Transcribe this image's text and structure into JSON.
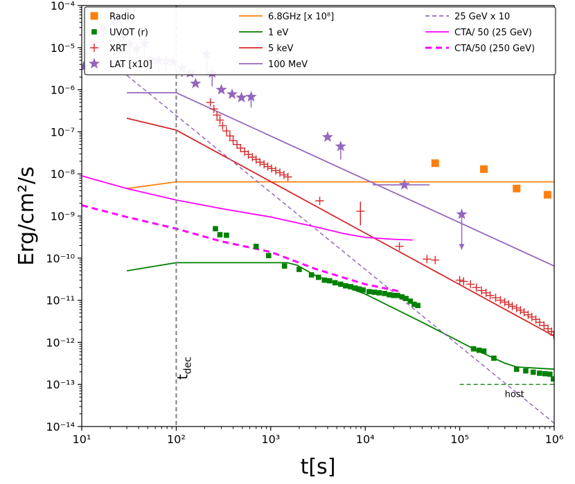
{
  "chart_data": {
    "type": "scatter",
    "xlabel": "t[s]",
    "ylabel": "Erg/cm²/s",
    "xscale": "log",
    "yscale": "log",
    "xlim": [
      10,
      1000000
    ],
    "ylim": [
      1e-14,
      0.0001
    ],
    "x_ticks": [
      {
        "value": 10,
        "label": "10¹"
      },
      {
        "value": 100,
        "label": "10²"
      },
      {
        "value": 1000,
        "label": "10³"
      },
      {
        "value": 10000,
        "label": "10⁴"
      },
      {
        "value": 100000,
        "label": "10⁵"
      },
      {
        "value": 1000000,
        "label": "10⁶"
      }
    ],
    "y_ticks": [
      {
        "value": 1e-14,
        "label": "10⁻¹⁴"
      },
      {
        "value": 1e-13,
        "label": "10⁻¹³"
      },
      {
        "value": 1e-12,
        "label": "10⁻¹²"
      },
      {
        "value": 1e-11,
        "label": "10⁻¹¹"
      },
      {
        "value": 1e-10,
        "label": "10⁻¹⁰"
      },
      {
        "value": 1e-09,
        "label": "10⁻⁹"
      },
      {
        "value": 1e-08,
        "label": "10⁻⁸"
      },
      {
        "value": 1e-07,
        "label": "10⁻⁷"
      },
      {
        "value": 1e-06,
        "label": "10⁻⁶"
      },
      {
        "value": 1e-05,
        "label": "10⁻⁵"
      },
      {
        "value": 0.0001,
        "label": "10⁻⁴"
      }
    ],
    "vline": {
      "x": 100,
      "label": "t",
      "label_sub": "dec",
      "color": "#808080"
    },
    "annotations": [
      {
        "text": "host",
        "x": 380000,
        "y": 5e-14
      }
    ],
    "legend": {
      "placement": "top",
      "columns": [
        [
          {
            "label": "Radio",
            "kind": "square",
            "color": "#ff7f0e"
          },
          {
            "label": "UVOT (r)",
            "kind": "smallsquare",
            "color": "#008000"
          },
          {
            "label": "XRT",
            "kind": "plus",
            "color": "#d62728"
          },
          {
            "label": "LAT [x10]",
            "kind": "star",
            "color": "#9467bd"
          }
        ],
        [
          {
            "label": "6.8GHz [x 10⁸]",
            "kind": "line",
            "color": "#ff7f0e",
            "dash": ""
          },
          {
            "label": "1 eV",
            "kind": "line",
            "color": "#008000",
            "dash": ""
          },
          {
            "label": "5 keV",
            "kind": "line",
            "color": "#d62728",
            "dash": ""
          },
          {
            "label": "100 MeV",
            "kind": "line",
            "color": "#9467bd",
            "dash": ""
          }
        ],
        [
          {
            "label": "25 GeV x 10",
            "kind": "line",
            "color": "#9467bd",
            "dash": "6,4"
          },
          {
            "label": "CTA/ 50 (25 GeV)",
            "kind": "line",
            "color": "#ff00ff",
            "dash": ""
          },
          {
            "label": "CTA/50 (250 GeV)",
            "kind": "line",
            "color": "#ff00ff",
            "dash": "9,6",
            "width": 3
          }
        ]
      ]
    },
    "series": [
      {
        "name": "Radio",
        "kind": "square",
        "color": "#ff7f0e",
        "points": [
          [
            55000,
            1.8e-08
          ],
          [
            180000,
            1.3e-08
          ],
          [
            400000,
            4.5e-09
          ],
          [
            850000,
            3.2e-09
          ]
        ]
      },
      {
        "name": "UVOT (r)",
        "kind": "smallsquare",
        "color": "#008000",
        "points": [
          [
            260,
            5e-10
          ],
          [
            290,
            3.6e-10
          ],
          [
            340,
            3.5e-10
          ],
          [
            700,
            1.9e-10
          ],
          [
            950,
            1.15e-10
          ],
          [
            1400,
            6.5e-11
          ],
          [
            2000,
            5.4e-11
          ],
          [
            2700,
            4e-11
          ],
          [
            3200,
            3.5e-11
          ],
          [
            3700,
            3e-11
          ],
          [
            4200,
            2.9e-11
          ],
          [
            4800,
            2.6e-11
          ],
          [
            5500,
            2.4e-11
          ],
          [
            6200,
            2.2e-11
          ],
          [
            7000,
            2.1e-11
          ],
          [
            7800,
            1.95e-11
          ],
          [
            8600,
            1.85e-11
          ],
          [
            9500,
            1.75e-11
          ],
          [
            11000,
            1.6e-11
          ],
          [
            12500,
            1.55e-11
          ],
          [
            14000,
            1.5e-11
          ],
          [
            16000,
            1.45e-11
          ],
          [
            18000,
            1.35e-11
          ],
          [
            20000,
            1.3e-11
          ],
          [
            22000,
            1.3e-11
          ],
          [
            24500,
            1.2e-11
          ],
          [
            27000,
            1.1e-11
          ],
          [
            30000,
            9.5e-12
          ],
          [
            33000,
            8e-12
          ],
          [
            36000,
            7.5e-12
          ],
          [
            140000,
            7e-13
          ],
          [
            160000,
            6.5e-13
          ],
          [
            180000,
            6.2e-13
          ],
          [
            230000,
            4.2e-13
          ],
          [
            400000,
            2.3e-13
          ],
          [
            500000,
            2.1e-13
          ],
          [
            600000,
            1.95e-13
          ],
          [
            700000,
            1.85e-13
          ],
          [
            800000,
            1.8e-13
          ],
          [
            900000,
            1.75e-13
          ],
          [
            980000,
            1.35e-13
          ]
        ]
      },
      {
        "name": "XRT",
        "kind": "plus",
        "color": "#d62728",
        "points": [
          [
            230,
            5e-07
          ],
          [
            250,
            3.5e-07
          ],
          [
            270,
            2.5e-07
          ],
          [
            290,
            1.9e-07
          ],
          [
            310,
            1.4e-07
          ],
          [
            340,
            1.05e-07
          ],
          [
            370,
            8e-08
          ],
          [
            400,
            6.2e-08
          ],
          [
            440,
            5e-08
          ],
          [
            480,
            4.1e-08
          ],
          [
            530,
            3.4e-08
          ],
          [
            580,
            2.9e-08
          ],
          [
            640,
            2.5e-08
          ],
          [
            700,
            2.2e-08
          ],
          [
            770,
            1.9e-08
          ],
          [
            850,
            1.7e-08
          ],
          [
            930,
            1.5e-08
          ],
          [
            1020,
            1.35e-08
          ],
          [
            1130,
            1.2e-08
          ],
          [
            1250,
            1.07e-08
          ],
          [
            1380,
            9.5e-09
          ],
          [
            1520,
            8.5e-09
          ],
          [
            3300,
            2.3e-09
          ],
          [
            8900,
            1.3e-09
          ],
          [
            23000,
            1.9e-10
          ],
          [
            45000,
            9.5e-11
          ],
          [
            55000,
            9e-11
          ],
          [
            100000,
            3e-11
          ],
          [
            110000,
            2.8e-11
          ],
          [
            130000,
            2.4e-11
          ],
          [
            150000,
            2e-11
          ],
          [
            170000,
            1.7e-11
          ],
          [
            190000,
            1.5e-11
          ],
          [
            210000,
            1.3e-11
          ],
          [
            240000,
            1.15e-11
          ],
          [
            270000,
            1e-11
          ],
          [
            300000,
            9e-12
          ],
          [
            330000,
            8e-12
          ],
          [
            360000,
            7.2e-12
          ],
          [
            400000,
            6.5e-12
          ],
          [
            440000,
            5.8e-12
          ],
          [
            480000,
            5.2e-12
          ],
          [
            530000,
            4.5e-12
          ],
          [
            580000,
            4e-12
          ],
          [
            640000,
            3.5e-12
          ],
          [
            700000,
            3e-12
          ],
          [
            780000,
            2.5e-12
          ],
          [
            860000,
            2.1e-12
          ],
          [
            940000,
            1.8e-12
          ],
          [
            990000,
            1.5e-12
          ]
        ]
      },
      {
        "name": "LAT [x10]",
        "kind": "star",
        "color": "#9467bd",
        "points": [
          [
            10.5,
            3.5e-06
          ],
          [
            13.5,
            1.3e-05
          ],
          [
            17,
            3e-05
          ],
          [
            22,
            4.2e-05
          ],
          [
            27,
            1.7e-05
          ],
          [
            32,
            1.2e-05
          ],
          [
            38,
            9.5e-06
          ],
          [
            46,
            1.25e-05
          ],
          [
            55,
            5e-06
          ],
          [
            65,
            5e-06
          ],
          [
            78,
            4.8e-06
          ],
          [
            93,
            4.6e-06
          ],
          [
            115,
            3.3e-06
          ],
          [
            140,
            2.5e-06
          ],
          [
            160,
            1.4e-06
          ],
          [
            210,
            7e-06
          ],
          [
            240,
            2.5e-06
          ],
          [
            300,
            1e-06
          ],
          [
            390,
            7.8e-07
          ],
          [
            490,
            6.5e-07
          ],
          [
            620,
            6.8e-07
          ],
          [
            4000,
            7.5e-08
          ],
          [
            5500,
            4.5e-08
          ],
          [
            26000,
            5.5e-09
          ],
          [
            105000,
            1.1e-09
          ]
        ]
      },
      {
        "name": "6.8GHz [x 10⁸]",
        "kind": "line",
        "color": "#ff7f0e",
        "dash": "",
        "width": 1.8,
        "points": [
          [
            30,
            4.5e-09
          ],
          [
            100,
            6.5e-09
          ],
          [
            1000000,
            6.5e-09
          ]
        ]
      },
      {
        "name": "1 eV",
        "kind": "line",
        "color": "#008000",
        "dash": "",
        "width": 1.8,
        "points": [
          [
            30,
            5e-11
          ],
          [
            100,
            7.8e-11
          ],
          [
            1500,
            7.8e-11
          ],
          [
            1900,
            6.8e-11
          ],
          [
            3000,
            3.8e-11
          ],
          [
            10000,
            1.4e-11
          ],
          [
            40000,
            3e-12
          ],
          [
            150000,
            6.5e-13
          ],
          [
            300000,
            3.2e-13
          ],
          [
            400000,
            2.6e-13
          ],
          [
            1000000,
            2.3e-13
          ]
        ]
      },
      {
        "name": "5 keV",
        "kind": "line",
        "color": "#d62728",
        "dash": "",
        "width": 1.8,
        "points": [
          [
            30,
            2.1e-07
          ],
          [
            100,
            1.1e-07
          ],
          [
            1000000,
            1.4e-12
          ]
        ]
      },
      {
        "name": "100 MeV",
        "kind": "line",
        "color": "#9467bd",
        "dash": "",
        "width": 1.8,
        "points": [
          [
            30,
            8.5e-07
          ],
          [
            100,
            8.5e-07
          ],
          [
            1000000,
            6.5e-11
          ]
        ]
      },
      {
        "name": "25 GeV x 10",
        "kind": "line",
        "color": "#9467bd",
        "dash": "6,4",
        "width": 1.5,
        "points": [
          [
            30,
            2.2e-06
          ],
          [
            1000000,
            1.2e-14
          ]
        ]
      },
      {
        "name": "CTA/ 50 (25 GeV)",
        "kind": "line",
        "color": "#ff00ff",
        "dash": "",
        "width": 1.8,
        "points": [
          [
            10,
            9e-09
          ],
          [
            30,
            4.5e-09
          ],
          [
            100,
            2.4e-09
          ],
          [
            300,
            1.5e-09
          ],
          [
            1000,
            9.5e-10
          ],
          [
            3000,
            5.5e-10
          ],
          [
            6000,
            3.8e-10
          ],
          [
            10000,
            3.1e-10
          ],
          [
            20000,
            2.8e-10
          ],
          [
            32000,
            2.7e-10
          ]
        ]
      },
      {
        "name": "CTA/50 (250 GeV)",
        "kind": "line",
        "color": "#ff00ff",
        "dash": "9,6",
        "width": 3,
        "points": [
          [
            10,
            1.8e-09
          ],
          [
            30,
            9.5e-10
          ],
          [
            100,
            5e-10
          ],
          [
            300,
            2.5e-10
          ],
          [
            1000,
            1.4e-10
          ],
          [
            3000,
            5.5e-11
          ],
          [
            10000,
            2.4e-11
          ],
          [
            24000,
            1.6e-11
          ]
        ]
      },
      {
        "name": "host",
        "kind": "line",
        "color": "#228B22",
        "dash": "6,4",
        "width": 1.5,
        "points": [
          [
            100000,
            1e-13
          ],
          [
            1000000,
            1e-13
          ]
        ]
      }
    ],
    "error_bars": [
      {
        "series": "XRT",
        "color": "#d62728",
        "x": 8900,
        "y_low": 6e-10,
        "y_high": 2.2e-09
      },
      {
        "series": "LAT [x10]",
        "color": "#9467bd",
        "x": 17,
        "y_low": 1.3e-05,
        "y_high": 3e-05
      },
      {
        "series": "LAT [x10]",
        "color": "#9467bd",
        "x": 22,
        "y_low": 2e-05,
        "y_high": 4.2e-05
      },
      {
        "series": "LAT [x10]",
        "color": "#9467bd",
        "x": 27,
        "y_low": 8e-06,
        "y_high": 1.7e-05
      },
      {
        "series": "LAT [x10]",
        "color": "#9467bd",
        "x": 32,
        "y_low": 5.5e-06,
        "y_high": 1.2e-05
      },
      {
        "series": "LAT [x10]",
        "color": "#9467bd",
        "x": 38,
        "y_low": 2.8e-06,
        "y_high": 9.5e-06
      },
      {
        "series": "LAT [x10]",
        "color": "#9467bd",
        "x": 46,
        "y_low": 4.5e-06,
        "y_high": 1.25e-05
      },
      {
        "series": "LAT [x10]",
        "color": "#9467bd",
        "x": 55,
        "y_low": 2.5e-06,
        "y_high": 5e-06
      },
      {
        "series": "LAT [x10]",
        "color": "#9467bd",
        "x": 65,
        "y_low": 2.7e-06,
        "y_high": 5e-06
      },
      {
        "series": "LAT [x10]",
        "color": "#9467bd",
        "x": 78,
        "y_low": 2.8e-06,
        "y_high": 4.8e-06
      },
      {
        "series": "LAT [x10]",
        "color": "#9467bd",
        "x": 115,
        "y_low": 2e-06,
        "y_high": 3.3e-06
      },
      {
        "series": "LAT [x10]",
        "color": "#9467bd",
        "x": 210,
        "y_low": 2.2e-06,
        "y_high": 7e-06
      },
      {
        "series": "LAT [x10]",
        "color": "#9467bd",
        "x": 240,
        "y_low": 1.2e-06,
        "y_high": 2.5e-06
      },
      {
        "series": "LAT [x10]",
        "color": "#9467bd",
        "x": 620,
        "y_low": 3.8e-07,
        "y_high": 6.8e-07
      },
      {
        "series": "LAT [x10]",
        "color": "#9467bd",
        "x": 5500,
        "y_low": 2.2e-08,
        "y_high": 4.5e-08
      }
    ],
    "upper_limits": [
      {
        "series": "LAT [x10]",
        "color": "#9467bd",
        "x": 105000,
        "y_from": 1.1e-09,
        "y_to": 1.6e-10
      }
    ],
    "horizontal_bars": [
      {
        "series": "LAT [x10]",
        "color": "#9467bd",
        "x_from": 12000,
        "x_to": 48000,
        "y": 5.5e-09
      }
    ]
  }
}
